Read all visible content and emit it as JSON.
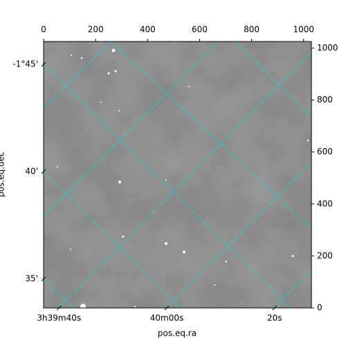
{
  "chart_data": {
    "type": "image",
    "xlabel": "pos.eq.ra",
    "ylabel": "pos.eq.dec",
    "xlim": [
      0,
      1030
    ],
    "xticks": [
      0,
      200,
      400,
      600,
      800,
      1000
    ],
    "ylim": [
      0,
      1025
    ],
    "yticks": [
      0,
      200,
      400,
      600,
      800,
      1000
    ],
    "ra_lim": [
      54.9048,
      55.1118
    ],
    "ra_ticks": [
      {
        "value": 54.9167,
        "label": "3h39m40s"
      },
      {
        "value": 55.0,
        "label": "40m00s"
      },
      {
        "value": 55.0833,
        "label": "20s"
      }
    ],
    "dec_lim": [
      -1.5608,
      -1.7678
    ],
    "dec_ticks": [
      {
        "value": -1.75,
        "label": "-1°45'"
      },
      {
        "value": -1.6667,
        "label": "40'"
      },
      {
        "value": -1.5833,
        "label": "35'"
      }
    ],
    "grid": true,
    "grid_color": "#00e0e0"
  }
}
